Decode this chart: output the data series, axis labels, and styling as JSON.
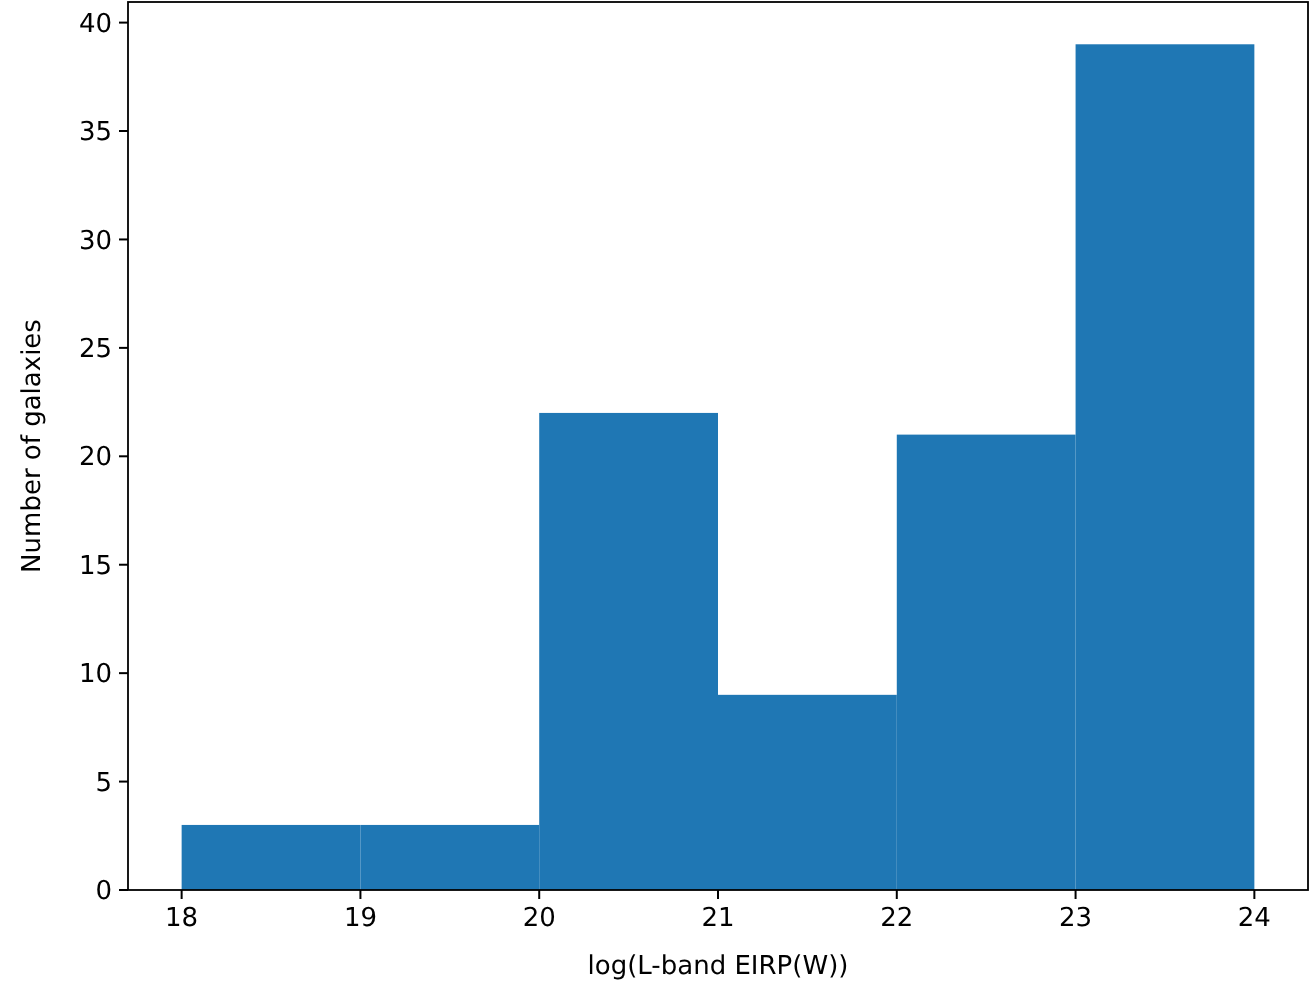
{
  "chart_data": {
    "type": "histogram",
    "xlabel": "log(L-band EIRP(W))",
    "ylabel": "Number of galaxies",
    "color": "#1f77b4",
    "bins": [
      18,
      19,
      20,
      21,
      22,
      23,
      24
    ],
    "values": [
      3,
      3,
      22,
      9,
      21,
      39
    ],
    "xlim": [
      17.7,
      24.3
    ],
    "ylim": [
      0,
      40.95
    ],
    "xticks": [
      18,
      19,
      20,
      21,
      22,
      23,
      24
    ],
    "yticks": [
      0,
      5,
      10,
      15,
      20,
      25,
      30,
      35,
      40
    ],
    "grid": false
  }
}
